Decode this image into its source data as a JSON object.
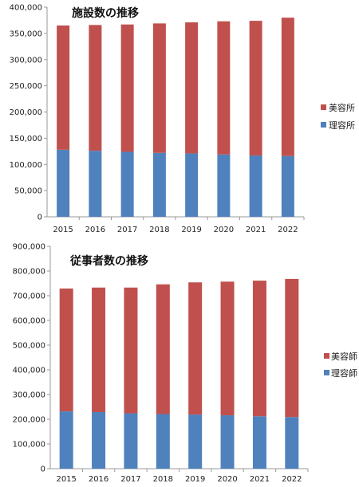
{
  "colors": {
    "theme": "#c0504d",
    "barber": "#4f81bd",
    "axis": "#999999",
    "grid": "#d9d9d9"
  },
  "chart_data": [
    {
      "type": "bar",
      "stacked": true,
      "title": "施設数の推移",
      "categories": [
        "2015",
        "2016",
        "2017",
        "2018",
        "2019",
        "2020",
        "2021",
        "2022"
      ],
      "ylim": [
        0,
        400000
      ],
      "yticks": [
        "0",
        "50,000",
        "100,000",
        "150,000",
        "200,000",
        "250,000",
        "300,000",
        "350,000",
        "400,000"
      ],
      "grid": false,
      "legend_position": "right",
      "series": [
        {
          "name": "理容所",
          "color": "#4f81bd",
          "values": [
            128000,
            126000,
            124000,
            122000,
            121000,
            119000,
            117000,
            116000
          ]
        },
        {
          "name": "美容所",
          "color": "#c0504d",
          "values": [
            237000,
            240000,
            243000,
            247000,
            250000,
            254000,
            257000,
            264000
          ]
        }
      ],
      "legend": [
        "美容所",
        "理容所"
      ]
    },
    {
      "type": "bar",
      "stacked": true,
      "title": "従事者数の推移",
      "categories": [
        "2015",
        "2016",
        "2017",
        "2018",
        "2019",
        "2020",
        "2021",
        "2022"
      ],
      "ylim": [
        0,
        900000
      ],
      "yticks": [
        "0",
        "100,000",
        "200,000",
        "300,000",
        "400,000",
        "500,000",
        "600,000",
        "700,000",
        "800,000",
        "900,000"
      ],
      "grid": false,
      "legend_position": "right",
      "series": [
        {
          "name": "理容師",
          "color": "#4f81bd",
          "values": [
            232000,
            229000,
            224000,
            221000,
            219000,
            216000,
            212000,
            209000
          ]
        },
        {
          "name": "美容師",
          "color": "#c0504d",
          "values": [
            497000,
            504000,
            509000,
            525000,
            535000,
            541000,
            549000,
            559000
          ]
        }
      ],
      "legend": [
        "美容師",
        "理容師"
      ]
    }
  ]
}
